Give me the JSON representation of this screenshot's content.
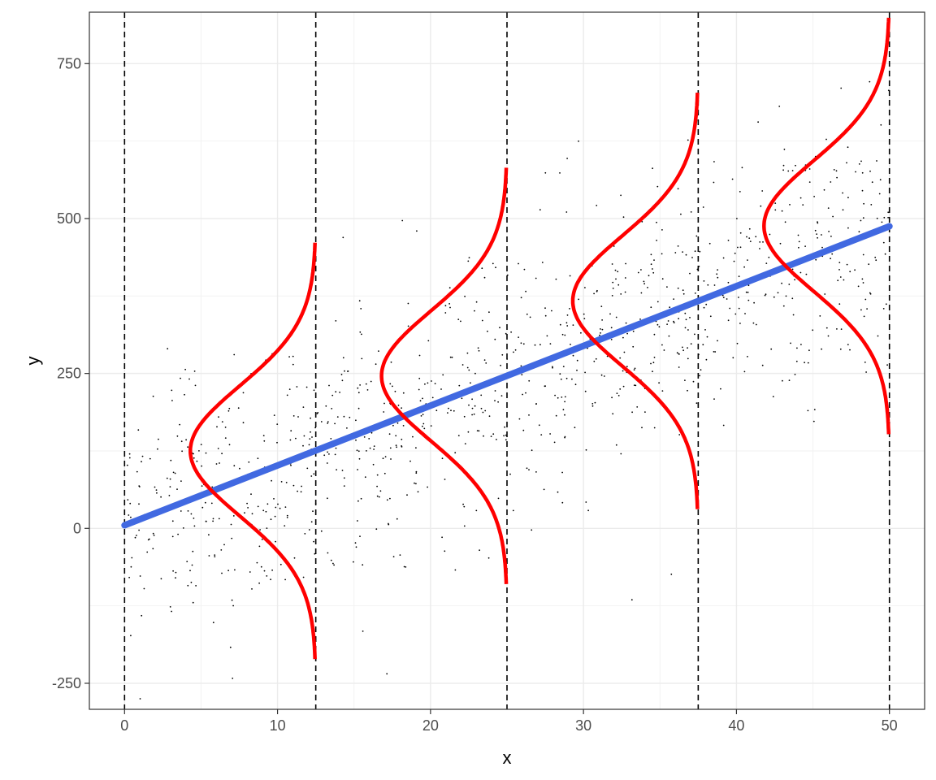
{
  "chart_data": {
    "type": "scatter",
    "title": "",
    "xlabel": "x",
    "ylabel": "y",
    "xlim": [
      -2.3,
      52.3
    ],
    "ylim": [
      -292,
      833
    ],
    "x_ticks": [
      0,
      10,
      20,
      30,
      40,
      50
    ],
    "y_ticks": [
      -250,
      0,
      250,
      500,
      750
    ],
    "grid": true,
    "legend": "none",
    "regression_line": {
      "intercept": 5,
      "slope": 9.65,
      "x_range": [
        0,
        50
      ],
      "color": "#4169E1"
    },
    "vertical_lines": [
      0,
      12.5,
      25,
      37.5,
      50
    ],
    "normal_curves": {
      "color": "#FF0000",
      "sigma": 105,
      "centers_x": [
        12.5,
        25,
        37.5,
        50
      ],
      "center_y": [
        125,
        246,
        367,
        488
      ],
      "peak_x_offset": 8.2,
      "y_span_sigmas": 3.2
    },
    "scatter": {
      "n": 1000,
      "x_range": [
        0,
        50
      ],
      "noise_sd": 105,
      "color": "#000000"
    }
  }
}
